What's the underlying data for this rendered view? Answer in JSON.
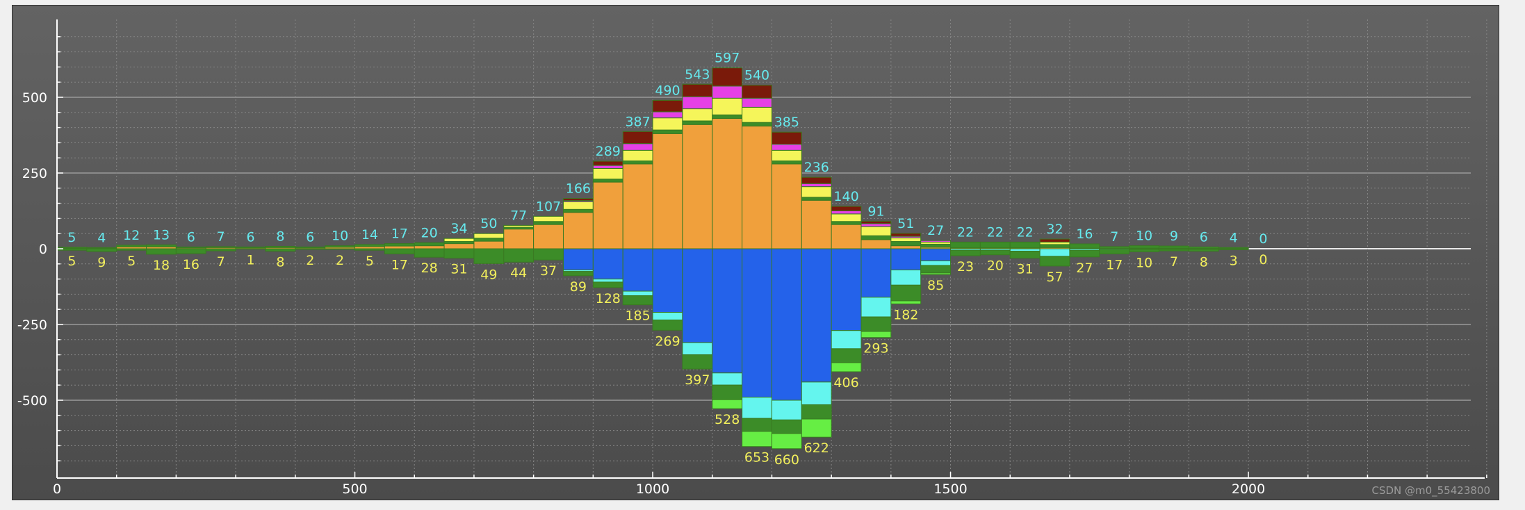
{
  "watermark": "CSDN @m0_55423800",
  "colors": {
    "background": "#565656",
    "grid_major": "#9a9a9a",
    "grid_minor": "#858585",
    "zero_line": "#e8e8e8",
    "pos_label": "#66e9ee",
    "neg_label": "#f2ef5c",
    "segment_border": "#3a7a22"
  },
  "chart_data": {
    "type": "bar",
    "stacked": true,
    "diverging": true,
    "bar_width": 50,
    "xlim": [
      0,
      2420
    ],
    "ylim": [
      -750,
      750
    ],
    "x_ticks": [
      0,
      500,
      1000,
      1500,
      2000
    ],
    "y_ticks": [
      -500,
      -250,
      0,
      250,
      500
    ],
    "grid": "on",
    "x": [
      25,
      75,
      125,
      175,
      225,
      275,
      325,
      375,
      425,
      475,
      525,
      575,
      625,
      675,
      725,
      775,
      825,
      875,
      925,
      975,
      1025,
      1075,
      1125,
      1175,
      1225,
      1275,
      1325,
      1375,
      1425,
      1475,
      1525,
      1575,
      1625,
      1675,
      1725,
      1775,
      1825,
      1875,
      1925,
      1975,
      2025
    ],
    "positive_totals": [
      5,
      4,
      12,
      13,
      6,
      7,
      6,
      8,
      6,
      10,
      14,
      17,
      20,
      34,
      50,
      77,
      107,
      166,
      289,
      387,
      490,
      543,
      597,
      540,
      385,
      236,
      140,
      91,
      51,
      27,
      22,
      22,
      22,
      32,
      16,
      7,
      10,
      9,
      6,
      4,
      0
    ],
    "negative_totals": [
      5,
      9,
      5,
      18,
      16,
      7,
      1,
      8,
      2,
      2,
      5,
      17,
      28,
      31,
      49,
      44,
      37,
      89,
      128,
      185,
      269,
      397,
      528,
      653,
      660,
      622,
      406,
      293,
      182,
      85,
      23,
      20,
      31,
      57,
      27,
      17,
      10,
      7,
      8,
      3,
      0
    ],
    "positive_series": [
      {
        "color": "#f0a03c",
        "values": [
          2,
          2,
          6,
          6,
          3,
          4,
          3,
          4,
          3,
          5,
          7,
          9,
          10,
          17,
          25,
          65,
          80,
          120,
          220,
          280,
          380,
          410,
          430,
          405,
          280,
          160,
          80,
          30,
          10,
          5,
          3,
          3,
          3,
          4,
          2,
          1,
          2,
          2,
          1,
          1,
          0
        ]
      },
      {
        "color": "#3c8c28",
        "values": [
          3,
          2,
          6,
          7,
          3,
          3,
          3,
          4,
          3,
          5,
          7,
          8,
          10,
          7,
          10,
          6,
          10,
          10,
          10,
          10,
          12,
          12,
          12,
          12,
          10,
          10,
          10,
          13,
          14,
          10,
          19,
          19,
          19,
          10,
          14,
          6,
          8,
          7,
          5,
          3,
          0
        ]
      },
      {
        "color": "#f5f55a",
        "values": [
          0,
          0,
          0,
          0,
          0,
          0,
          0,
          0,
          0,
          0,
          0,
          0,
          0,
          10,
          15,
          6,
          17,
          25,
          35,
          35,
          40,
          40,
          55,
          50,
          35,
          35,
          25,
          30,
          12,
          7,
          0,
          0,
          0,
          8,
          0,
          0,
          0,
          0,
          0,
          0,
          0
        ]
      },
      {
        "color": "#e640e6",
        "values": [
          0,
          0,
          0,
          0,
          0,
          0,
          0,
          0,
          0,
          0,
          0,
          0,
          0,
          0,
          0,
          0,
          0,
          4,
          10,
          22,
          20,
          40,
          40,
          30,
          20,
          10,
          10,
          10,
          5,
          5,
          0,
          0,
          0,
          0,
          0,
          0,
          0,
          0,
          0,
          0,
          0
        ]
      },
      {
        "color": "#7a1a0a",
        "values": [
          0,
          0,
          0,
          0,
          0,
          0,
          0,
          0,
          0,
          0,
          0,
          0,
          0,
          0,
          0,
          0,
          0,
          7,
          14,
          40,
          38,
          41,
          60,
          43,
          40,
          21,
          15,
          8,
          10,
          0,
          0,
          0,
          0,
          10,
          0,
          0,
          0,
          0,
          0,
          0,
          0
        ]
      }
    ],
    "negative_series": [
      {
        "color": "#2462ea",
        "values": [
          0,
          0,
          0,
          0,
          0,
          0,
          0,
          0,
          0,
          0,
          0,
          0,
          0,
          0,
          0,
          0,
          0,
          70,
          100,
          140,
          210,
          310,
          410,
          490,
          500,
          440,
          270,
          160,
          70,
          40,
          0,
          0,
          0,
          0,
          0,
          0,
          0,
          0,
          0,
          0,
          0
        ]
      },
      {
        "color": "#64f5ee",
        "values": [
          0,
          0,
          0,
          0,
          0,
          0,
          0,
          0,
          0,
          0,
          0,
          0,
          0,
          0,
          0,
          0,
          0,
          5,
          10,
          15,
          25,
          40,
          40,
          70,
          65,
          75,
          60,
          65,
          50,
          15,
          5,
          5,
          8,
          25,
          5,
          3,
          2,
          2,
          2,
          1,
          0
        ]
      },
      {
        "color": "#3c8c28",
        "values": [
          5,
          9,
          5,
          18,
          16,
          7,
          1,
          8,
          2,
          2,
          5,
          17,
          28,
          31,
          49,
          44,
          37,
          14,
          18,
          30,
          34,
          47,
          48,
          43,
          45,
          47,
          46,
          48,
          52,
          25,
          18,
          15,
          23,
          32,
          22,
          14,
          8,
          5,
          6,
          2,
          0
        ]
      },
      {
        "color": "#66ee44",
        "values": [
          0,
          0,
          0,
          0,
          0,
          0,
          0,
          0,
          0,
          0,
          0,
          0,
          0,
          0,
          0,
          0,
          0,
          0,
          0,
          0,
          0,
          0,
          30,
          50,
          50,
          60,
          30,
          20,
          10,
          5,
          0,
          0,
          0,
          0,
          0,
          0,
          0,
          0,
          0,
          0,
          0
        ]
      }
    ]
  }
}
